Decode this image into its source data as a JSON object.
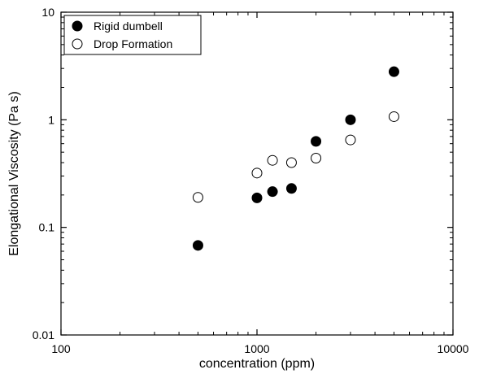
{
  "chart_data": {
    "type": "scatter",
    "xlabel": "concentration (ppm)",
    "ylabel": "Elongational Viscosity (Pa s)",
    "xscale": "log",
    "yscale": "log",
    "xlim": [
      100,
      10000
    ],
    "ylim": [
      0.01,
      10
    ],
    "xticks": [
      {
        "value": 100,
        "label": "100"
      },
      {
        "value": 1000,
        "label": "1000"
      },
      {
        "value": 10000,
        "label": "10000"
      }
    ],
    "yticks": [
      {
        "value": 0.01,
        "label": "0.01"
      },
      {
        "value": 0.1,
        "label": "0.1"
      },
      {
        "value": 1,
        "label": "1"
      },
      {
        "value": 10,
        "label": "10"
      }
    ],
    "grid": false,
    "legend_position": "top-left",
    "series": [
      {
        "name": "Rigid dumbell",
        "marker": "filled-circle",
        "color": "#000000",
        "points": [
          {
            "x": 500,
            "y": 0.068
          },
          {
            "x": 1000,
            "y": 0.188
          },
          {
            "x": 1200,
            "y": 0.215
          },
          {
            "x": 1500,
            "y": 0.23
          },
          {
            "x": 2000,
            "y": 0.63
          },
          {
            "x": 3000,
            "y": 1.0
          },
          {
            "x": 5000,
            "y": 2.8
          }
        ]
      },
      {
        "name": "Drop Formation",
        "marker": "open-circle",
        "color": "#000000",
        "points": [
          {
            "x": 500,
            "y": 0.19
          },
          {
            "x": 1000,
            "y": 0.32
          },
          {
            "x": 1200,
            "y": 0.42
          },
          {
            "x": 1500,
            "y": 0.4
          },
          {
            "x": 2000,
            "y": 0.44
          },
          {
            "x": 3000,
            "y": 0.65
          },
          {
            "x": 5000,
            "y": 1.07
          }
        ]
      }
    ]
  }
}
